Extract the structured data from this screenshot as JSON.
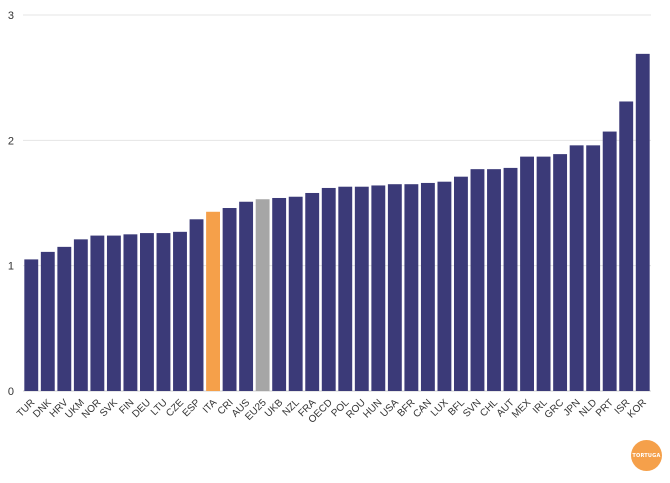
{
  "chart_data": {
    "type": "bar",
    "title": "",
    "xlabel": "",
    "ylabel": "",
    "ylim": [
      0,
      3
    ],
    "yticks": [
      0,
      1,
      2,
      3
    ],
    "categories": [
      "TUR",
      "DNK",
      "HRV",
      "UKM",
      "NOR",
      "SVK",
      "FIN",
      "DEU",
      "LTU",
      "CZE",
      "ESP",
      "ITA",
      "CRI",
      "AUS",
      "EU25",
      "UKB",
      "NZL",
      "FRA",
      "OECD",
      "POL",
      "ROU",
      "HUN",
      "USA",
      "BFR",
      "CAN",
      "LUX",
      "BFL",
      "SVN",
      "CHL",
      "AUT",
      "MEX",
      "IRL",
      "GRC",
      "JPN",
      "NLD",
      "PRT",
      "ISR",
      "KOR"
    ],
    "values": [
      1.05,
      1.11,
      1.15,
      1.21,
      1.24,
      1.24,
      1.25,
      1.26,
      1.26,
      1.27,
      1.37,
      1.43,
      1.46,
      1.51,
      1.53,
      1.54,
      1.55,
      1.58,
      1.62,
      1.63,
      1.63,
      1.64,
      1.65,
      1.65,
      1.66,
      1.67,
      1.71,
      1.77,
      1.77,
      1.78,
      1.87,
      1.87,
      1.89,
      1.96,
      1.96,
      2.07,
      2.31,
      2.69
    ],
    "highlights": {
      "ITA": "#f5a04a",
      "EU25": "#a6a6a6"
    },
    "bar_color": "#3b3a78",
    "grid": true
  },
  "logo_text": "TORTUGA"
}
